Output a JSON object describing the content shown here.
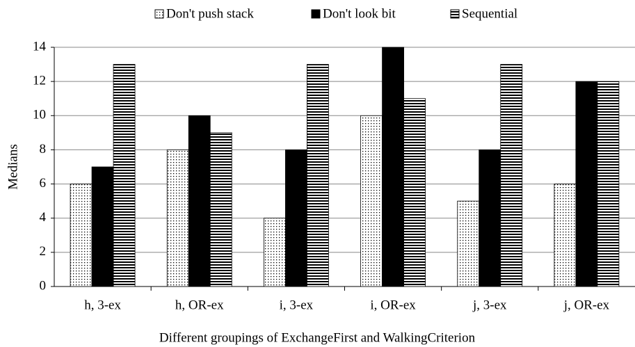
{
  "chart_data": {
    "type": "bar",
    "x_label": "Different groupings of ExchangeFirst and WalkingCriterion",
    "y_label": "Medians",
    "categories": [
      "h, 3-ex",
      "h, OR-ex",
      "i, 3-ex",
      "i, OR-ex",
      "j, 3-ex",
      "j, OR-ex"
    ],
    "series": [
      {
        "name": "Don't push stack",
        "color": "#000000",
        "pattern": "dots",
        "values": [
          6,
          8,
          4,
          10,
          5,
          6
        ]
      },
      {
        "name": "Don't look bit",
        "color": "#000000",
        "pattern": "solid",
        "values": [
          7,
          10,
          8,
          14,
          8,
          12
        ]
      },
      {
        "name": "Sequential",
        "color": "#000000",
        "pattern": "hstripes",
        "values": [
          13,
          9,
          13,
          11,
          13,
          12
        ]
      }
    ],
    "ylim": [
      0,
      14
    ],
    "yticks": [
      0,
      2,
      4,
      6,
      8,
      10,
      12,
      14
    ],
    "grid": true,
    "legend": "top"
  }
}
